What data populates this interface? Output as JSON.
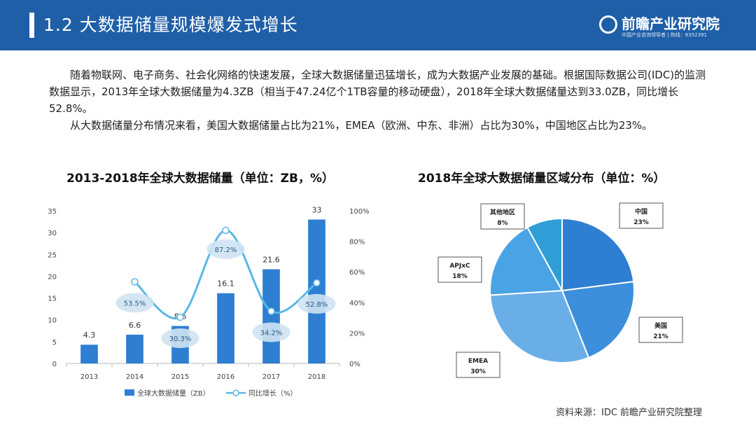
{
  "header": {
    "title": "1.2  大数据储量规模爆发式增长",
    "logo_name": "前瞻产业研究院",
    "logo_sub": "中国产业咨询领导者 | 热线：8352391"
  },
  "paragraphs": [
    "随着物联网、电子商务、社会化网络的快速发展，全球大数据储量迅猛增长，成为大数据产业发展的基础。根据国际数据公司(IDC)的监测数据显示，2013年全球大数据储量为4.3ZB（相当于47.24亿个1TB容量的移动硬盘），2018年全球大数据储量达到33.0ZB，同比增长52.8%。",
    "从大数据储量分布情况来看，美国大数据储量占比为21%，EMEA（欧洲、中东、非洲）占比为30%，中国地区占比为23%。"
  ],
  "source": "资料来源：IDC 前瞻产业研究院整理",
  "chart_data": [
    {
      "type": "bar",
      "title": "2013-2018年全球大数据储量（单位：ZB，%）",
      "categories": [
        "2013",
        "2014",
        "2015",
        "2016",
        "2017",
        "2018"
      ],
      "series": [
        {
          "name": "全球大数据储量（ZB）",
          "type": "bar",
          "axis": "left",
          "values": [
            4.3,
            6.6,
            8.6,
            16.1,
            21.6,
            33
          ],
          "labels": [
            "4.3",
            "6.6",
            "8.6",
            "16.1",
            "21.6",
            "33"
          ],
          "color": "#2e7fd1"
        },
        {
          "name": "同比增长（%）",
          "type": "line",
          "axis": "right",
          "values": [
            null,
            53.5,
            30.3,
            87.2,
            34.2,
            52.8
          ],
          "labels": [
            "",
            "53.5%",
            "30.3%",
            "87.2%",
            "34.2%",
            "52.8%"
          ],
          "color": "#5ab6e6"
        }
      ],
      "ylim": [
        0,
        35
      ],
      "yticks": [
        "0",
        "5",
        "10",
        "15",
        "20",
        "25",
        "30",
        "35"
      ],
      "y2lim": [
        0,
        100
      ],
      "y2ticks": [
        "0%",
        "20%",
        "40%",
        "60%",
        "80%",
        "100%"
      ],
      "legend_position": "bottom"
    },
    {
      "type": "pie",
      "title": "2018年全球大数据储量区域分布（单位：%）",
      "slices": [
        {
          "name": "中国",
          "value": 23,
          "label": "23%",
          "color": "#2e7fd1"
        },
        {
          "name": "美国",
          "value": 21,
          "label": "21%",
          "color": "#3d8fdc"
        },
        {
          "name": "EMEA",
          "value": 30,
          "label": "30%",
          "color": "#6aaee8"
        },
        {
          "name": "APJxC",
          "value": 18,
          "label": "18%",
          "color": "#4aa3e4"
        },
        {
          "name": "其他地区",
          "value": 8,
          "label": "8%",
          "color": "#2f9ed6"
        }
      ]
    }
  ]
}
